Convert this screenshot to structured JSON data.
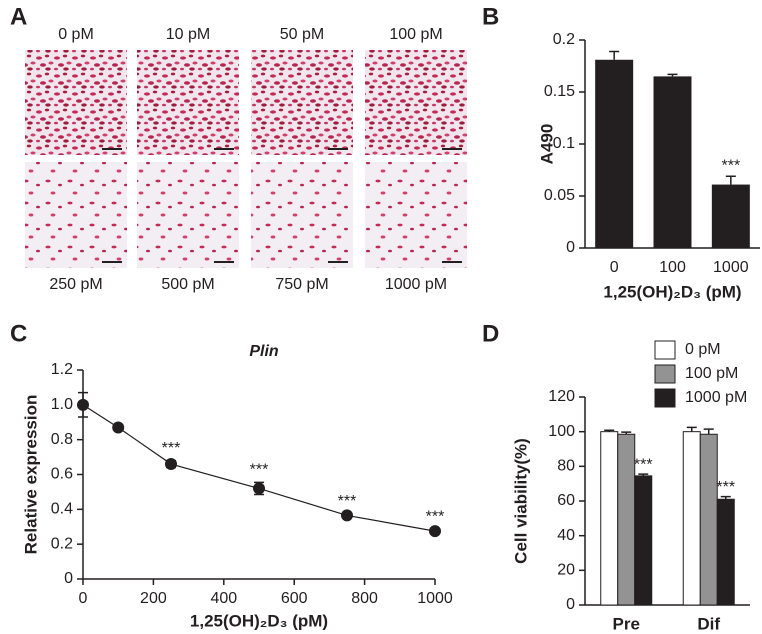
{
  "image_panel": {
    "panel_label": "A",
    "top_labels": [
      "0 pM",
      "10 pM",
      "50 pM",
      "100 pM"
    ],
    "bottom_labels": [
      "250 pM",
      "500 pM",
      "750 pM",
      "1000 pM"
    ]
  },
  "chart_data": [
    {
      "type": "bar",
      "panel_label": "B",
      "ylabel": "A490",
      "xlabel": "1,25(OH)₂D₃ (pM)",
      "categories": [
        "0",
        "100",
        "1000"
      ],
      "values": [
        0.181,
        0.165,
        0.061
      ],
      "errors": [
        0.008,
        0.002,
        0.008
      ],
      "significance": [
        null,
        null,
        "***"
      ],
      "color": "#231f20",
      "ylim": [
        0,
        0.2
      ],
      "yticks": [
        0,
        0.05,
        0.1,
        0.15,
        0.2
      ]
    },
    {
      "type": "line",
      "panel_label": "C",
      "title": "Plin",
      "ylabel": "Relative expression",
      "xlabel": "1,25(OH)₂D₃ (pM)",
      "x": [
        0,
        100,
        250,
        500,
        750,
        1000
      ],
      "values": [
        1.0,
        0.87,
        0.66,
        0.52,
        0.365,
        0.275
      ],
      "errors": [
        0.07,
        0.01,
        0.02,
        0.035,
        0.01,
        0.01
      ],
      "significance": [
        null,
        null,
        "***",
        "***",
        "***",
        "***"
      ],
      "color": "#231f20",
      "xlim": [
        0,
        1000
      ],
      "xticks": [
        0,
        200,
        400,
        600,
        800,
        1000
      ],
      "ylim": [
        0,
        1.2
      ],
      "yticks": [
        0,
        0.2,
        0.4,
        0.6,
        0.8,
        {
          "value": 1,
          "label": "1.0"
        },
        1.2
      ]
    },
    {
      "type": "grouped_bar",
      "panel_label": "D",
      "ylabel": "Cell viability(%)",
      "categories": [
        "Pre",
        "Dif"
      ],
      "series": [
        {
          "name": "0 pM",
          "color": "#ffffff",
          "values": [
            100,
            100
          ],
          "errors": [
            0.8,
            2.5
          ],
          "significance": [
            null,
            null
          ]
        },
        {
          "name": "100 pM",
          "color": "#939393",
          "values": [
            98.5,
            98.5
          ],
          "errors": [
            1.2,
            3
          ],
          "significance": [
            null,
            null
          ]
        },
        {
          "name": "1000 pM",
          "color": "#231f20",
          "values": [
            74.5,
            61
          ],
          "errors": [
            1,
            1.5
          ],
          "significance": [
            "***",
            "***"
          ]
        }
      ],
      "ylim": [
        0,
        120
      ],
      "yticks": [
        0,
        20,
        40,
        60,
        80,
        100,
        120
      ],
      "legend": "top"
    }
  ]
}
